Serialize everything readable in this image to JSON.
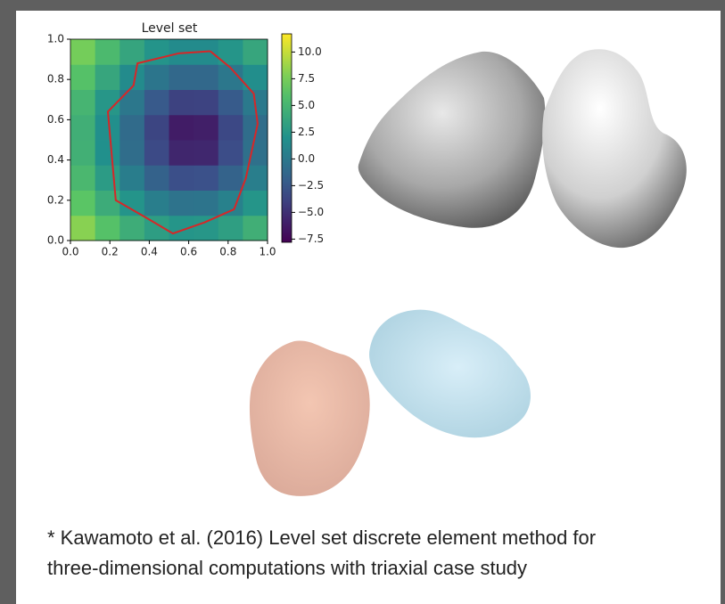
{
  "chart_data": {
    "type": "heatmap",
    "title": "Level set",
    "colormap": "viridis",
    "xlim": [
      0,
      1
    ],
    "ylim": [
      0,
      1
    ],
    "xticks": [
      {
        "value": 0,
        "label": "0.0"
      },
      {
        "value": 0.2,
        "label": "0.2"
      },
      {
        "value": 0.4,
        "label": "0.4"
      },
      {
        "value": 0.6,
        "label": "0.6"
      },
      {
        "value": 0.8,
        "label": "0.8"
      },
      {
        "value": 1,
        "label": "1.0"
      }
    ],
    "yticks": [
      {
        "value": 0,
        "label": "0.0"
      },
      {
        "value": 0.2,
        "label": "0.2"
      },
      {
        "value": 0.4,
        "label": "0.4"
      },
      {
        "value": 0.6,
        "label": "0.6"
      },
      {
        "value": 0.8,
        "label": "0.8"
      },
      {
        "value": 1,
        "label": "1.0"
      }
    ],
    "clim": [
      -7.8,
      11.7
    ],
    "cticks": [
      {
        "value": 10,
        "label": "10.0"
      },
      {
        "value": 7.5,
        "label": "7.5"
      },
      {
        "value": 5,
        "label": "5.0"
      },
      {
        "value": 2.5,
        "label": "2.5"
      },
      {
        "value": 0,
        "label": "0.0"
      },
      {
        "value": -2.5,
        "label": "−2.5"
      },
      {
        "value": -5,
        "label": "−5.0"
      },
      {
        "value": -7.5,
        "label": "−7.5"
      }
    ],
    "z": [
      [
        8.1,
        6.1,
        4.3,
        3.0,
        2.3,
        2.4,
        3.1,
        4.5
      ],
      [
        6.5,
        4.2,
        2.2,
        0.5,
        -0.4,
        -0.3,
        0.7,
        2.3
      ],
      [
        5.3,
        2.8,
        0.4,
        -1.7,
        -3.1,
        -3.0,
        -1.6,
        0.5
      ],
      [
        4.6,
        1.9,
        -0.8,
        -3.4,
        -5.6,
        -5.5,
        -3.2,
        -0.6
      ],
      [
        4.5,
        1.8,
        -1.0,
        -3.7,
        -6.2,
        -6.0,
        -3.5,
        -0.8
      ],
      [
        5.0,
        2.4,
        -0.1,
        -2.3,
        -3.9,
        -3.8,
        -2.2,
        0.1
      ],
      [
        6.1,
        3.7,
        1.5,
        -0.2,
        -1.2,
        -1.2,
        -0.1,
        1.7
      ],
      [
        7.5,
        5.4,
        3.6,
        2.2,
        1.5,
        1.5,
        2.3,
        3.7
      ]
    ],
    "contour": {
      "color": "#d62728",
      "x": [
        0.71,
        0.81,
        0.93,
        0.95,
        0.89,
        0.83,
        0.68,
        0.52,
        0.39,
        0.23,
        0.21,
        0.19,
        0.32,
        0.34,
        0.55,
        0.71
      ],
      "y": [
        0.94,
        0.86,
        0.73,
        0.58,
        0.31,
        0.155,
        0.09,
        0.035,
        0.11,
        0.2,
        0.42,
        0.64,
        0.77,
        0.88,
        0.93,
        0.94
      ]
    }
  },
  "caption": [
    "* Kawamoto et al. (2016) Level set discrete element method for",
    "three-dimensional computations with triaxial case study"
  ]
}
